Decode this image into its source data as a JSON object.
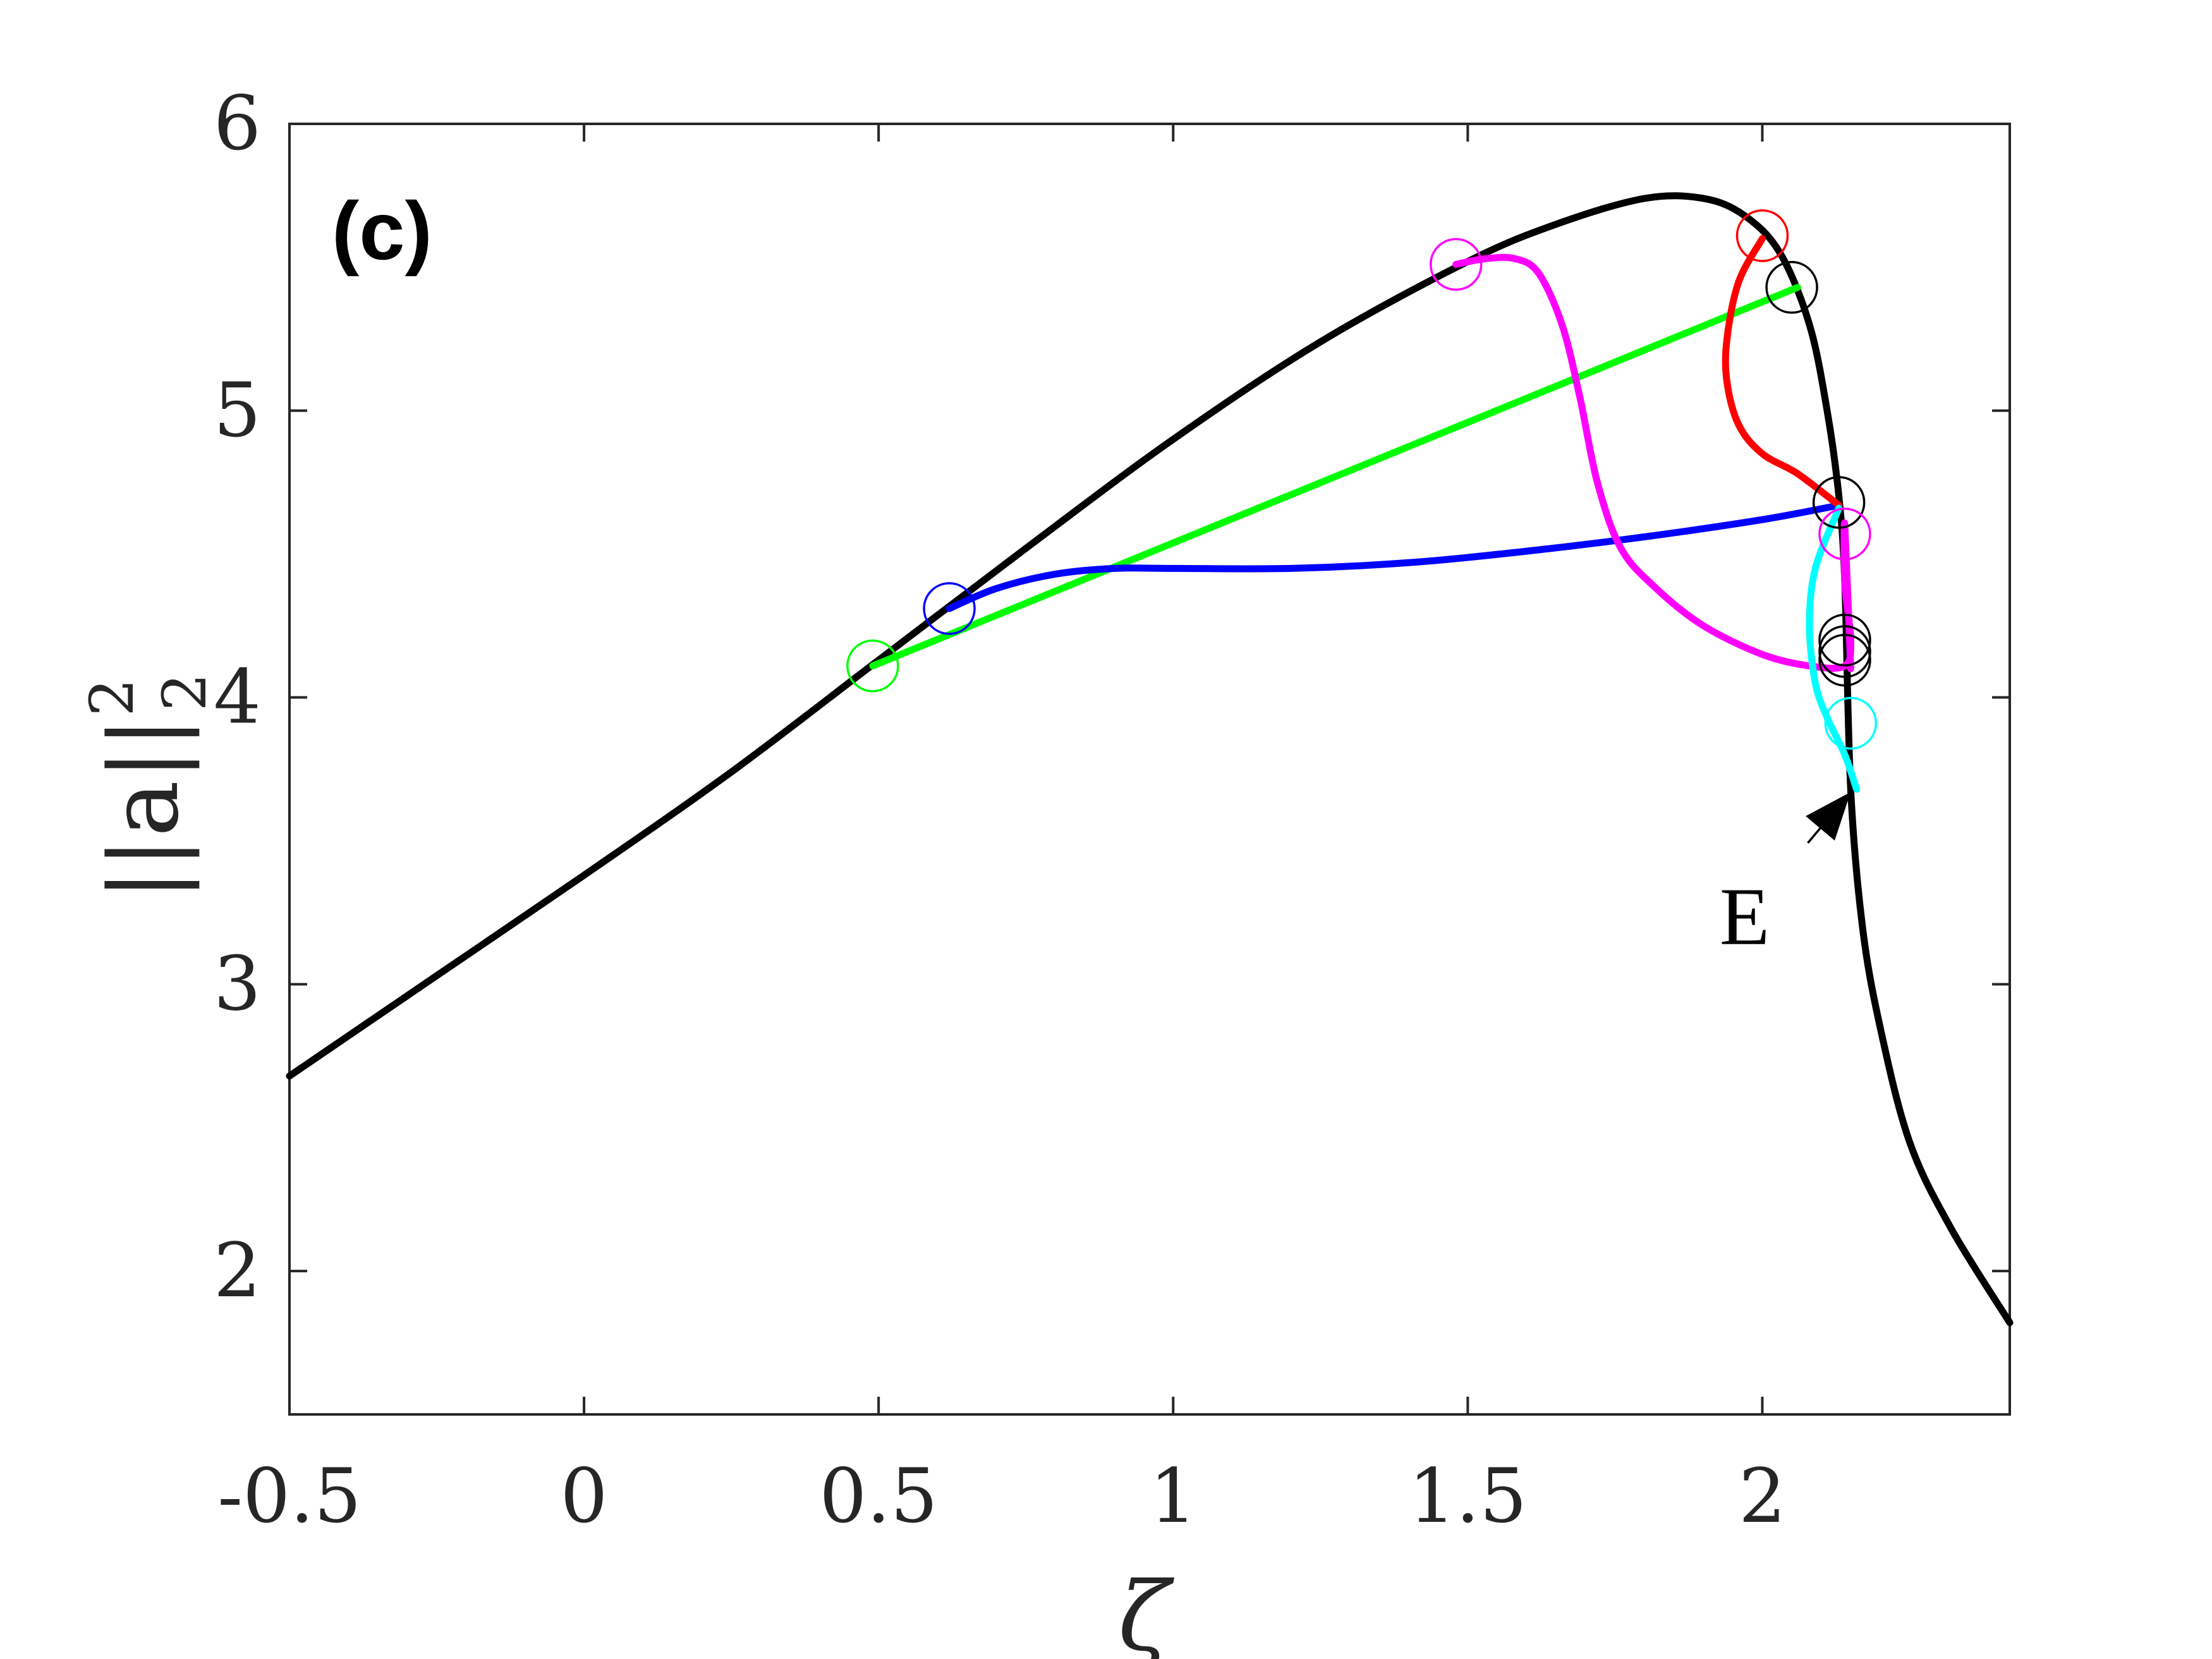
{
  "chart_data": {
    "type": "line",
    "panel_label": "(c)",
    "xlabel": "ζ",
    "ylabel_base": "||a||",
    "ylabel_sup": "2",
    "ylabel_sub": "2",
    "xlim": [
      -0.5,
      2.42
    ],
    "ylim": [
      1.5,
      6
    ],
    "xticks": [
      -0.5,
      0,
      0.5,
      1,
      1.5,
      2
    ],
    "xtick_labels": [
      "-0.5",
      "0",
      "0.5",
      "1",
      "1.5",
      "2"
    ],
    "yticks": [
      2,
      3,
      4,
      5,
      6
    ],
    "ytick_labels": [
      "2",
      "3",
      "4",
      "5",
      "6"
    ],
    "grid": false,
    "series": [
      {
        "color": "#000000",
        "x": [
          -0.5,
          -0.25,
          0,
          0.25,
          0.5,
          0.75,
          1.0,
          1.25,
          1.5,
          1.65,
          1.8,
          1.9,
          1.97,
          2.03,
          2.08,
          2.11,
          2.13,
          2.14,
          2.15,
          2.17,
          2.2,
          2.25,
          2.32,
          2.42
        ],
        "y": [
          2.68,
          3.03,
          3.38,
          3.74,
          4.13,
          4.52,
          4.9,
          5.24,
          5.52,
          5.65,
          5.74,
          5.74,
          5.68,
          5.55,
          5.3,
          5.0,
          4.7,
          4.4,
          3.68,
          3.2,
          2.85,
          2.45,
          2.15,
          1.82
        ]
      },
      {
        "color": "#00ff00",
        "x": [
          0.49,
          2.06
        ],
        "y": [
          4.11,
          5.43
        ]
      },
      {
        "color": "#0000ff",
        "x": [
          0.62,
          0.7,
          0.8,
          0.9,
          1.0,
          1.2,
          1.4,
          1.6,
          1.8,
          2.0,
          2.13
        ],
        "y": [
          4.31,
          4.38,
          4.43,
          4.45,
          4.45,
          4.45,
          4.47,
          4.51,
          4.56,
          4.62,
          4.67
        ]
      },
      {
        "color": "#ff00ff",
        "x": [
          1.48,
          1.53,
          1.58,
          1.62,
          1.66,
          1.69,
          1.72,
          1.76,
          1.82,
          1.9,
          2.0,
          2.08,
          2.14,
          2.15,
          2.14,
          2.14,
          2.15
        ],
        "y": [
          5.51,
          5.53,
          5.53,
          5.48,
          5.3,
          5.05,
          4.75,
          4.52,
          4.38,
          4.25,
          4.15,
          4.11,
          4.11,
          4.2,
          4.4,
          4.6,
          4.1
        ]
      },
      {
        "color": "#ff0000",
        "x": [
          2.0,
          1.96,
          1.94,
          1.94,
          1.96,
          2.0,
          2.06,
          2.13
        ],
        "y": [
          5.6,
          5.45,
          5.25,
          5.1,
          4.95,
          4.85,
          4.78,
          4.67
        ]
      },
      {
        "color": "#00ffff",
        "x": [
          2.13,
          2.09,
          2.08,
          2.09,
          2.11,
          2.14,
          2.16
        ],
        "y": [
          4.66,
          4.45,
          4.25,
          4.05,
          3.93,
          3.8,
          3.68
        ]
      }
    ],
    "markers": [
      {
        "x": 0.49,
        "y": 4.11,
        "color": "#00ff00"
      },
      {
        "x": 0.62,
        "y": 4.31,
        "color": "#0000ff"
      },
      {
        "x": 1.48,
        "y": 5.51,
        "color": "#ff00ff"
      },
      {
        "x": 2.0,
        "y": 5.61,
        "color": "#ff0000"
      },
      {
        "x": 2.05,
        "y": 5.43,
        "color": "#000000"
      },
      {
        "x": 2.13,
        "y": 4.68,
        "color": "#000000"
      },
      {
        "x": 2.14,
        "y": 4.57,
        "color": "#ff00ff"
      },
      {
        "x": 2.14,
        "y": 4.2,
        "color": "#000000"
      },
      {
        "x": 2.14,
        "y": 4.16,
        "color": "#000000"
      },
      {
        "x": 2.14,
        "y": 4.13,
        "color": "#000000"
      },
      {
        "x": 2.15,
        "y": 3.91,
        "color": "#00ffff"
      }
    ],
    "annotations": [
      {
        "text": "E",
        "text_at": [
          1.97,
          3.14
        ],
        "arrow_to": [
          2.15,
          3.67
        ]
      }
    ]
  }
}
